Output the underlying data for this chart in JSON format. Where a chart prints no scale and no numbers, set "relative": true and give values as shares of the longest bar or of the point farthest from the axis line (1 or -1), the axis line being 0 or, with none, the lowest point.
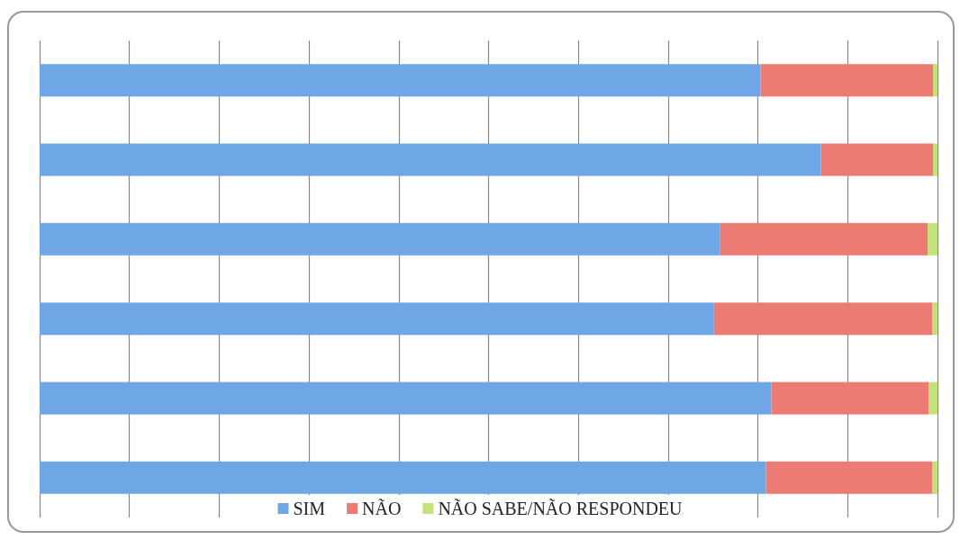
{
  "chart_data": {
    "type": "bar",
    "orientation": "horizontal",
    "stacked": true,
    "relative": true,
    "grid": "x",
    "legend": "bottom",
    "categories": [
      null,
      null,
      null,
      null,
      null,
      null
    ],
    "series": [
      {
        "name": "SIM",
        "color": "#6fa6e6",
        "values": [
          0.803,
          0.87,
          0.758,
          0.751,
          0.815,
          0.809
        ]
      },
      {
        "name": "NÃO",
        "color": "#ec7b74",
        "values": [
          0.192,
          0.125,
          0.231,
          0.243,
          0.175,
          0.185
        ]
      },
      {
        "name": "NÃO SABE/NÃO RESPONDEU",
        "color": "#c4e27a",
        "values": [
          0.005,
          0.005,
          0.011,
          0.006,
          0.01,
          0.006
        ]
      }
    ]
  }
}
